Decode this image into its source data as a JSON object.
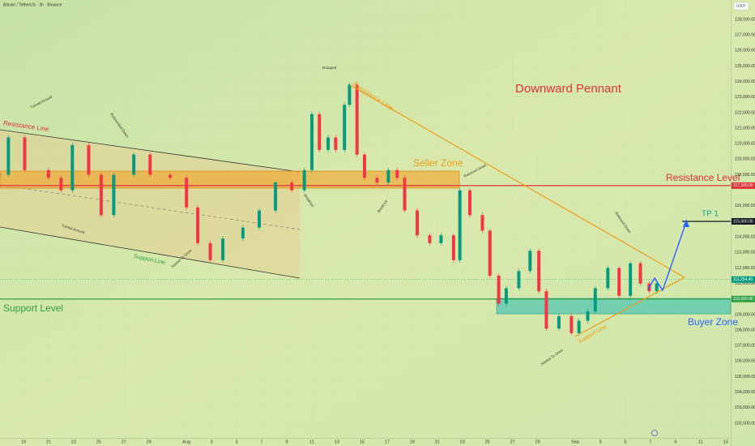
{
  "chart_data": {
    "type": "candlestick",
    "title": "Bitcoin / TetherUS · 3h · Binance",
    "currency": "USDT",
    "up_color": "#089981",
    "down_color": "#f23645",
    "x": [
      -1.9,
      -1.2,
      0.1,
      2.0,
      3.0,
      3.9,
      5.2,
      6.2,
      7.2,
      8.8,
      10.1,
      11.7,
      13.0,
      13.9,
      14.9,
      15.9,
      17.5,
      18.8,
      20.1,
      21.4,
      22.4,
      23.0,
      23.6,
      24.3,
      24.9,
      25.6,
      26.0,
      26.6,
      27.2,
      28.2,
      29.1,
      29.8,
      30.4,
      31.4,
      32.4,
      33.3,
      34.3,
      34.8,
      35.6,
      36.6,
      37.2,
      37.9,
      38.5,
      39.5,
      40.4,
      41.1,
      41.7,
      42.7,
      43.7,
      44.3,
      45.0,
      45.6,
      46.6,
      47.5,
      48.4,
      49.2,
      49.9,
      50.5
    ],
    "values": [
      118000,
      120400,
      118300,
      117800,
      117000,
      119900,
      118000,
      115400,
      118000,
      119300,
      118000,
      117800,
      115900,
      113600,
      112500,
      113900,
      114600,
      115700,
      117500,
      117000,
      118300,
      121900,
      119600,
      120400,
      119600,
      122500,
      123800,
      119300,
      117800,
      117500,
      118300,
      117800,
      115700,
      114100,
      113600,
      114100,
      112500,
      117000,
      115400,
      114400,
      111500,
      109700,
      110700,
      111800,
      113100,
      110500,
      108100,
      108900,
      107800,
      108600,
      109200,
      110700,
      112000,
      110200,
      112300,
      111000,
      110500,
      111000
    ],
    "xlim": [
      -1.87,
      56.4
    ],
    "ylim": [
      101060,
      129250
    ],
    "xticks": [
      {
        "value": 0,
        "label": "19"
      },
      {
        "value": 2,
        "label": "21"
      },
      {
        "value": 4,
        "label": "23"
      },
      {
        "value": 6,
        "label": "25"
      },
      {
        "value": 8,
        "label": "27"
      },
      {
        "value": 10,
        "label": "29"
      },
      {
        "value": 13,
        "label": "Aug"
      },
      {
        "value": 15,
        "label": "3"
      },
      {
        "value": 17,
        "label": "5"
      },
      {
        "value": 19,
        "label": "7"
      },
      {
        "value": 21,
        "label": "9"
      },
      {
        "value": 23,
        "label": "11"
      },
      {
        "value": 25,
        "label": "13"
      },
      {
        "value": 27,
        "label": "15"
      },
      {
        "value": 29,
        "label": "17"
      },
      {
        "value": 31,
        "label": "19"
      },
      {
        "value": 33,
        "label": "21"
      },
      {
        "value": 35,
        "label": "23"
      },
      {
        "value": 37,
        "label": "25"
      },
      {
        "value": 39,
        "label": "27"
      },
      {
        "value": 41,
        "label": "29"
      },
      {
        "value": 44,
        "label": "Sep"
      },
      {
        "value": 46,
        "label": "3"
      },
      {
        "value": 48,
        "label": "5"
      },
      {
        "value": 50,
        "label": "7"
      },
      {
        "value": 52,
        "label": "9"
      },
      {
        "value": 54,
        "label": "11"
      },
      {
        "value": 56,
        "label": "13"
      }
    ],
    "yticks": [
      {
        "value": 102000,
        "label": "102,000.00"
      },
      {
        "value": 103000,
        "label": "103,000.00"
      },
      {
        "value": 104000,
        "label": "104,000.00"
      },
      {
        "value": 105000,
        "label": "105,000.00"
      },
      {
        "value": 106000,
        "label": "106,000.00"
      },
      {
        "value": 107000,
        "label": "107,000.00"
      },
      {
        "value": 108000,
        "label": "108,000.00"
      },
      {
        "value": 109000,
        "label": "109,000.00"
      },
      {
        "value": 111000,
        "label": "111,000.00"
      },
      {
        "value": 112000,
        "label": "112,000.00"
      },
      {
        "value": 113000,
        "label": "113,000.00"
      },
      {
        "value": 114000,
        "label": "114,000.00"
      },
      {
        "value": 116000,
        "label": "116,000.00"
      },
      {
        "value": 118000,
        "label": "118,000.00"
      },
      {
        "value": 119000,
        "label": "119,000.00"
      },
      {
        "value": 120000,
        "label": "120,000.00"
      },
      {
        "value": 121000,
        "label": "121,000.00"
      },
      {
        "value": 122000,
        "label": "122,000.00"
      },
      {
        "value": 123000,
        "label": "123,000.00"
      },
      {
        "value": 124000,
        "label": "124,000.00"
      },
      {
        "value": 125000,
        "label": "125,000.00"
      },
      {
        "value": 126000,
        "label": "126,000.00"
      },
      {
        "value": 127000,
        "label": "127,000.00"
      },
      {
        "value": 128000,
        "label": "128,000.00"
      }
    ],
    "price_labels": [
      {
        "value": 117300,
        "label": "117,300.00",
        "color": "#e0303a"
      },
      {
        "value": 115000,
        "label": "115,000.00",
        "color": "#131722"
      },
      {
        "value": 111254.4,
        "label": "111,254.40",
        "color": "#089981"
      },
      {
        "value": 110000,
        "label": "110,000.00",
        "color": "#2f9e44"
      }
    ],
    "annotations": [
      "Resistance Line",
      "Turned Around",
      "Rebounded Down",
      "Turned Around",
      "Support Line",
      "Started To Grow",
      "Breakout",
      "Dropped",
      "Resistance Line",
      "Downward Pennant",
      "Seller Zone",
      "Rebound Down",
      "Breakout",
      "Resistance Level",
      "Rebound Down",
      "TP 1",
      "Support Level",
      "Buyer Zone",
      "Started To Grow",
      "Support Line"
    ]
  }
}
